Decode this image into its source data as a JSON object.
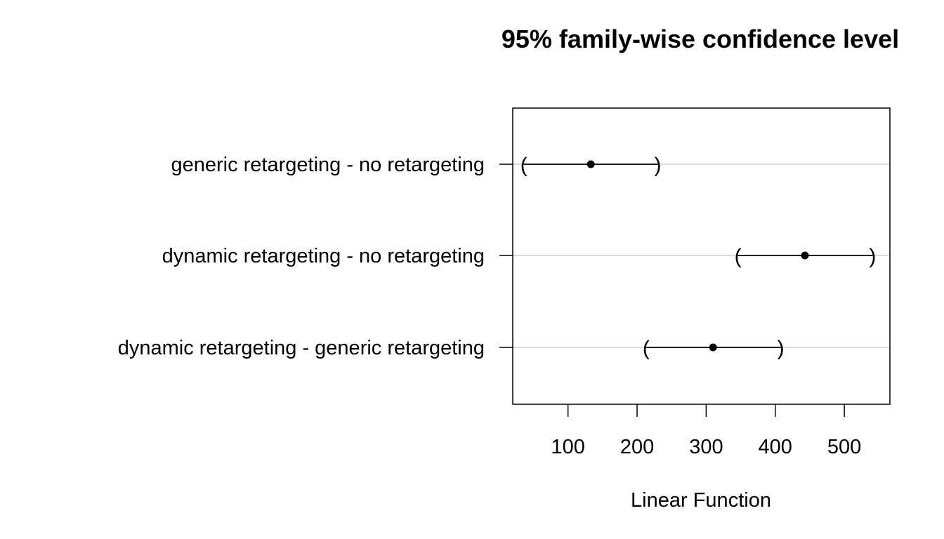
{
  "chart_data": {
    "type": "scatter",
    "title": "95% family-wise confidence level",
    "xlabel": "Linear Function",
    "ylabel": "",
    "xlim": [
      20,
      566
    ],
    "x_ticks": [
      100,
      200,
      300,
      400,
      500
    ],
    "grid": "horizontal",
    "point_color": "#000000",
    "grid_color": "#d3d3d3",
    "comparisons": [
      {
        "label": "generic retargeting - no retargeting",
        "estimate": 133,
        "lower": 36,
        "upper": 230
      },
      {
        "label": "dynamic retargeting - no retargeting",
        "estimate": 443,
        "lower": 346,
        "upper": 541
      },
      {
        "label": "dynamic retargeting - generic retargeting",
        "estimate": 310,
        "lower": 213,
        "upper": 408
      }
    ]
  }
}
